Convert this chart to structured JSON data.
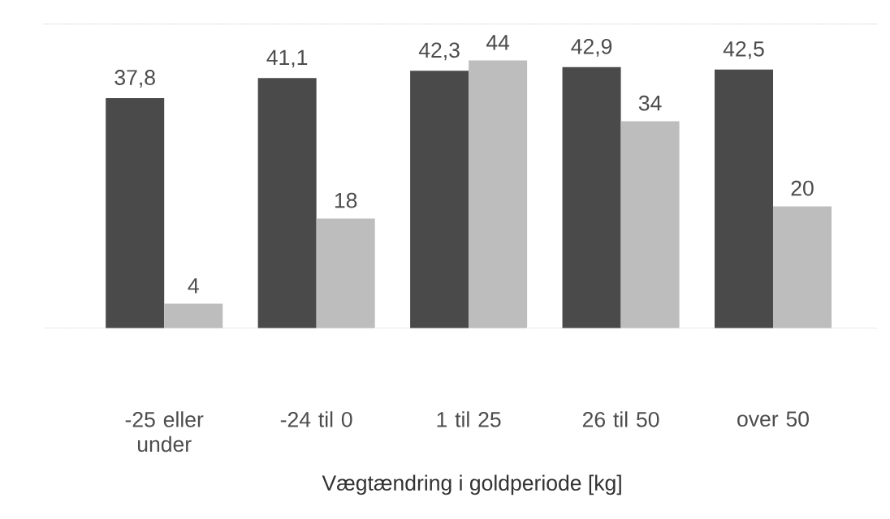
{
  "chart_data": {
    "type": "bar",
    "categories": [
      "-25 eller under",
      "-24 til 0",
      "1 til 25",
      "26 til 50",
      "over 50"
    ],
    "series": [
      {
        "color": "#4a4a4a",
        "values": [
          37.8,
          41.1,
          42.3,
          42.9,
          42.5
        ],
        "value_labels": [
          "37,8",
          "41,1",
          "42,3",
          "42,9",
          "42,5"
        ]
      },
      {
        "color": "#bdbdbd",
        "values": [
          4,
          18,
          44,
          34,
          20
        ],
        "value_labels": [
          "4",
          "18",
          "44",
          "34",
          "20"
        ]
      }
    ],
    "xlabel": "Vægtændring i goldperiode [kg]",
    "ylim": [
      0,
      50
    ],
    "yticks": [
      {
        "value": 0,
        "label": null
      },
      {
        "value": 50,
        "label": null
      }
    ],
    "grid": "y",
    "tick_labels": "x"
  }
}
